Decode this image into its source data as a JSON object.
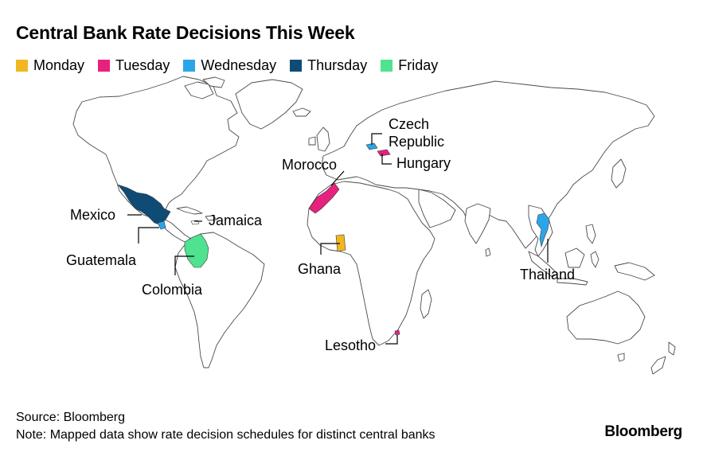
{
  "title": "Central Bank Rate Decisions This Week",
  "legend": [
    {
      "label": "Monday",
      "color": "#f2b71f"
    },
    {
      "label": "Tuesday",
      "color": "#e8207e"
    },
    {
      "label": "Wednesday",
      "color": "#2aa6e8"
    },
    {
      "label": "Thursday",
      "color": "#0e4c76"
    },
    {
      "label": "Friday",
      "color": "#4fe28f"
    }
  ],
  "countries": {
    "czech_line1": "Czech",
    "czech_line2": "Republic",
    "hungary": "Hungary",
    "morocco": "Morocco",
    "mexico": "Mexico",
    "jamaica": "Jamaica",
    "guatemala": "Guatemala",
    "colombia": "Colombia",
    "ghana": "Ghana",
    "thailand": "Thailand",
    "lesotho": "Lesotho"
  },
  "footer": {
    "source": "Source: Bloomberg",
    "note": "Note: Mapped data show rate decision schedules for distinct central banks"
  },
  "brand": "Bloomberg"
}
